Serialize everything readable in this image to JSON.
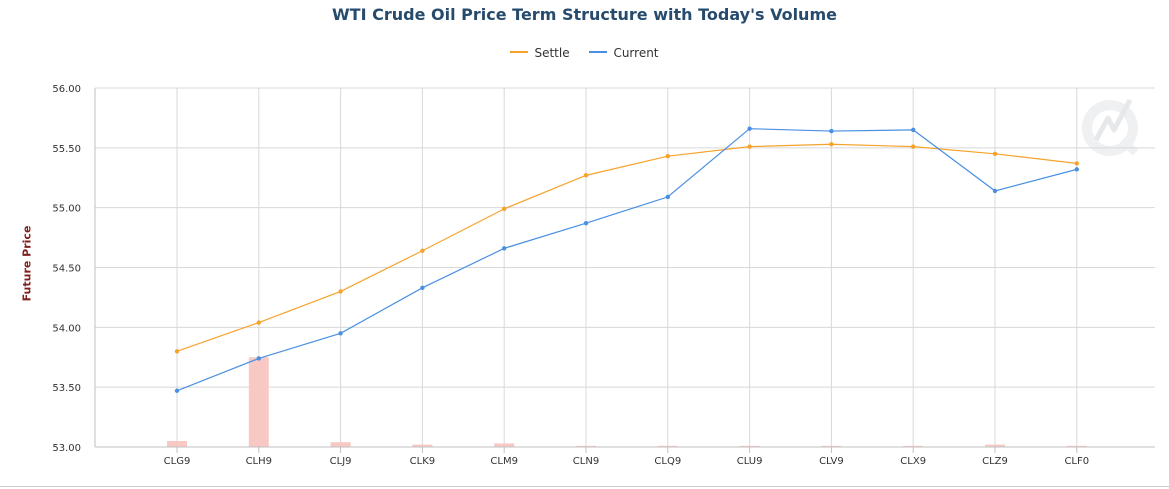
{
  "chart_data": {
    "type": "line",
    "title": "WTI Crude Oil Price Term Structure with Today's Volume",
    "xlabel": "",
    "ylabel": "Future Price",
    "categories": [
      "CLG9",
      "CLH9",
      "CLJ9",
      "CLK9",
      "CLM9",
      "CLN9",
      "CLQ9",
      "CLU9",
      "CLV9",
      "CLX9",
      "CLZ9",
      "CLF0"
    ],
    "ylim": [
      53.0,
      56.0
    ],
    "yticks": [
      "53.00",
      "53.50",
      "54.00",
      "54.50",
      "55.00",
      "55.50",
      "56.00"
    ],
    "grid": true,
    "legend_position": "top-center",
    "series": [
      {
        "name": "Settle",
        "color": "#f7a32b",
        "values": [
          53.8,
          54.04,
          54.3,
          54.64,
          54.99,
          55.27,
          55.43,
          55.51,
          55.53,
          55.51,
          55.45,
          55.37
        ]
      },
      {
        "name": "Current",
        "color": "#4a90e2",
        "values": [
          53.47,
          53.74,
          53.95,
          54.33,
          54.66,
          54.87,
          55.09,
          55.66,
          55.64,
          55.65,
          55.14,
          55.32
        ]
      }
    ],
    "volume_bars": {
      "color": "#f8c9c4",
      "values": [
        53.05,
        53.75,
        53.04,
        53.02,
        53.03,
        53.01,
        53.01,
        53.01,
        53.01,
        53.01,
        53.02,
        53.01
      ]
    }
  }
}
